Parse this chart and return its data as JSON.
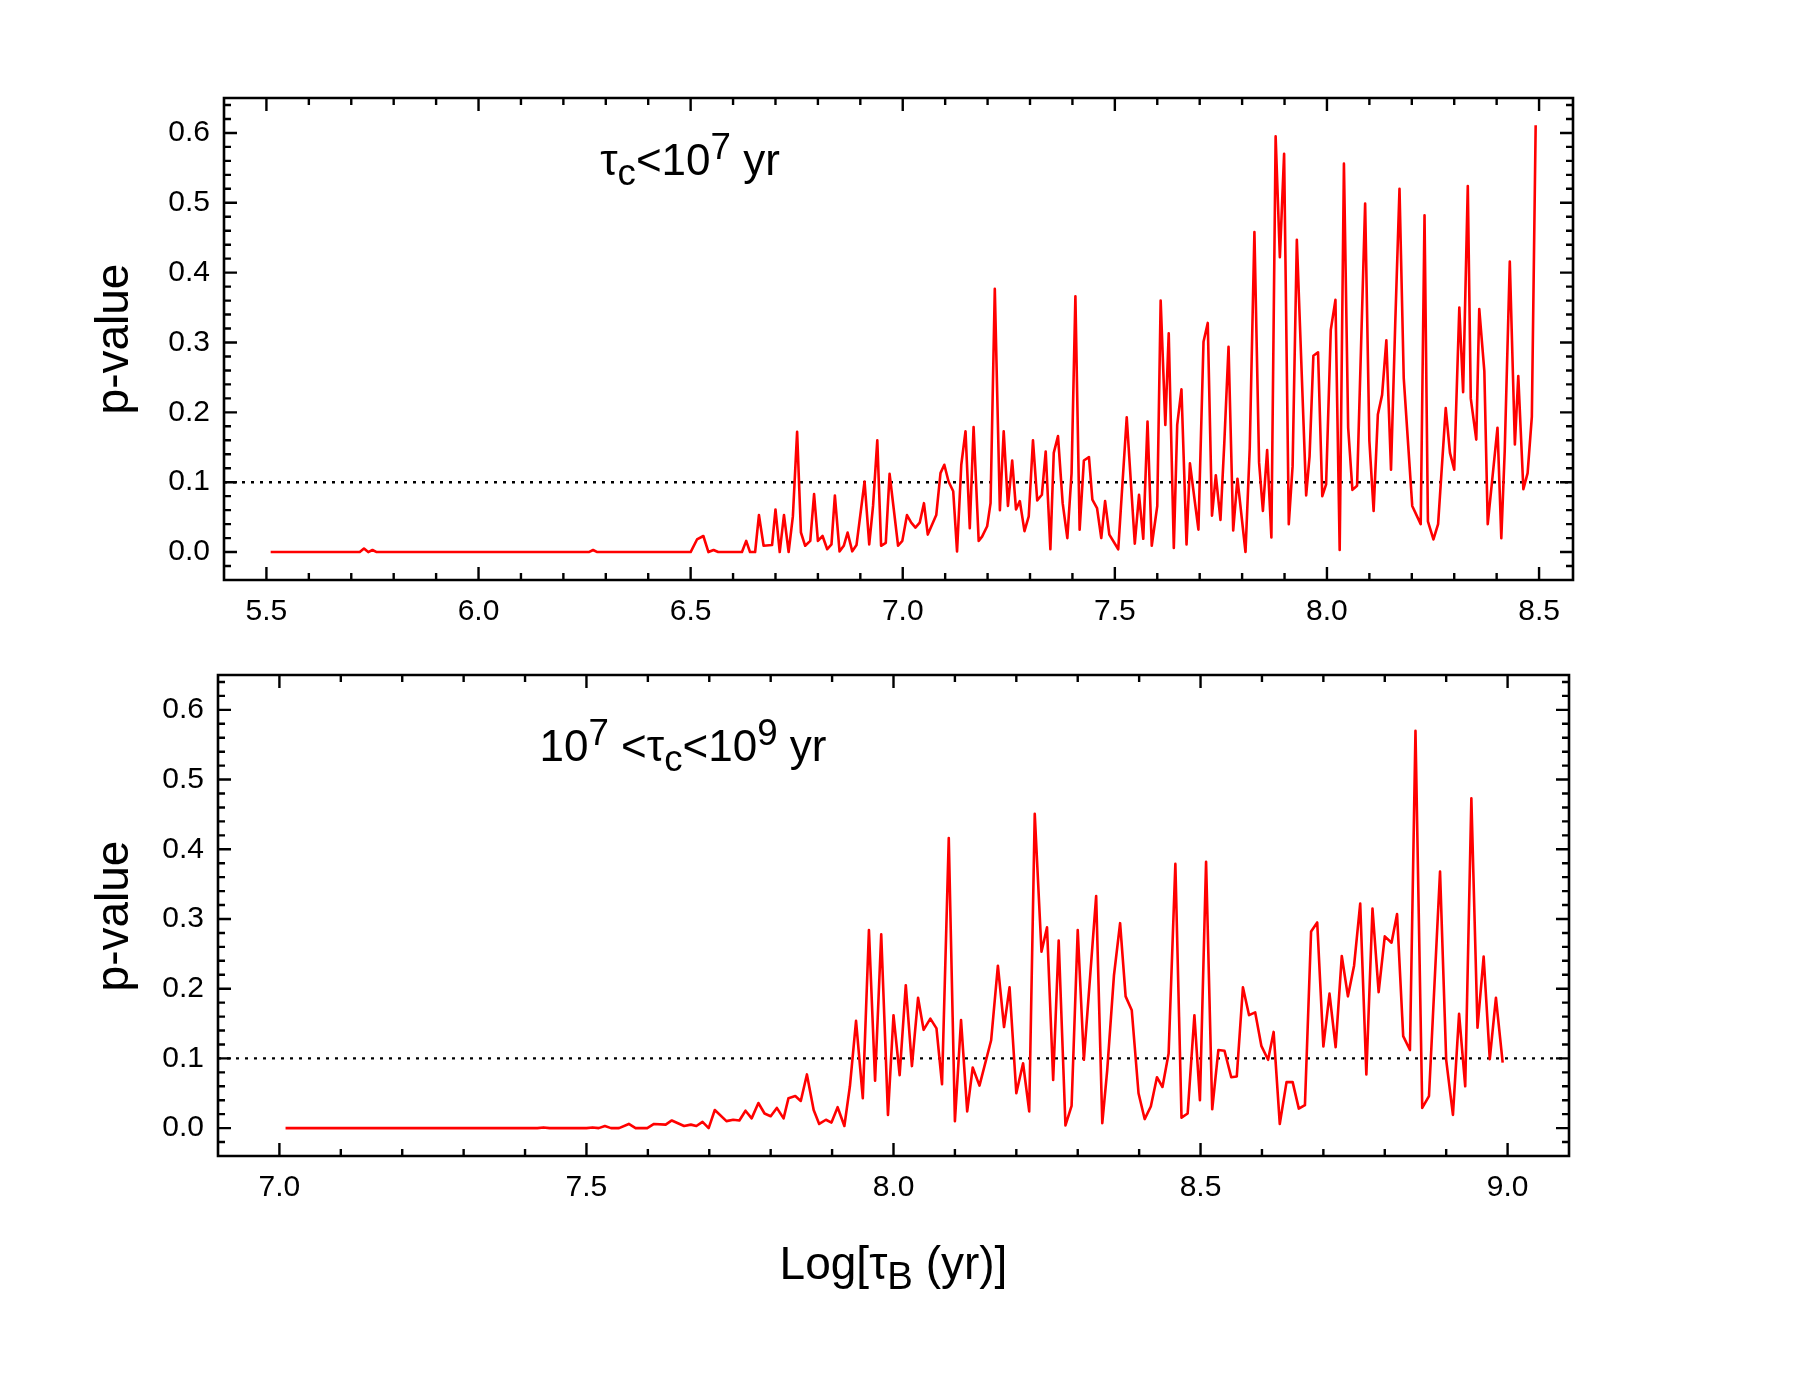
{
  "chart_data": [
    {
      "type": "line",
      "ylabel": "p-value",
      "annotations": [
        "τ$_{c}$<10$^{7}$ yr"
      ],
      "xlim": [
        5.4,
        8.58
      ],
      "ylim": [
        -0.04,
        0.65
      ],
      "xticks": [
        {
          "value": 5.5,
          "label": "5.5"
        },
        {
          "value": 5.6,
          "label": null
        },
        {
          "value": 5.7,
          "label": null
        },
        {
          "value": 5.8,
          "label": null
        },
        {
          "value": 5.9,
          "label": null
        },
        {
          "value": 6.0,
          "label": "6.0"
        },
        {
          "value": 6.1,
          "label": null
        },
        {
          "value": 6.2,
          "label": null
        },
        {
          "value": 6.3,
          "label": null
        },
        {
          "value": 6.4,
          "label": null
        },
        {
          "value": 6.5,
          "label": "6.5"
        },
        {
          "value": 6.6,
          "label": null
        },
        {
          "value": 6.7,
          "label": null
        },
        {
          "value": 6.8,
          "label": null
        },
        {
          "value": 6.9,
          "label": null
        },
        {
          "value": 7.0,
          "label": "7.0"
        },
        {
          "value": 7.1,
          "label": null
        },
        {
          "value": 7.2,
          "label": null
        },
        {
          "value": 7.3,
          "label": null
        },
        {
          "value": 7.4,
          "label": null
        },
        {
          "value": 7.5,
          "label": "7.5"
        },
        {
          "value": 7.6,
          "label": null
        },
        {
          "value": 7.7,
          "label": null
        },
        {
          "value": 7.8,
          "label": null
        },
        {
          "value": 7.9,
          "label": null
        },
        {
          "value": 8.0,
          "label": "8.0"
        },
        {
          "value": 8.1,
          "label": null
        },
        {
          "value": 8.2,
          "label": null
        },
        {
          "value": 8.3,
          "label": null
        },
        {
          "value": 8.4,
          "label": null
        },
        {
          "value": 8.5,
          "label": "8.5"
        }
      ],
      "yticks": [
        {
          "value": -0.02,
          "label": null
        },
        {
          "value": 0,
          "label": "0.0"
        },
        {
          "value": 0.02,
          "label": null
        },
        {
          "value": 0.04,
          "label": null
        },
        {
          "value": 0.06,
          "label": null
        },
        {
          "value": 0.08,
          "label": null
        },
        {
          "value": 0.1,
          "label": "0.1"
        },
        {
          "value": 0.12,
          "label": null
        },
        {
          "value": 0.14,
          "label": null
        },
        {
          "value": 0.16,
          "label": null
        },
        {
          "value": 0.18,
          "label": null
        },
        {
          "value": 0.2,
          "label": "0.2"
        },
        {
          "value": 0.22,
          "label": null
        },
        {
          "value": 0.24,
          "label": null
        },
        {
          "value": 0.26,
          "label": null
        },
        {
          "value": 0.28,
          "label": null
        },
        {
          "value": 0.3,
          "label": "0.3"
        },
        {
          "value": 0.32,
          "label": null
        },
        {
          "value": 0.34,
          "label": null
        },
        {
          "value": 0.36,
          "label": null
        },
        {
          "value": 0.38,
          "label": null
        },
        {
          "value": 0.4,
          "label": "0.4"
        },
        {
          "value": 0.42,
          "label": null
        },
        {
          "value": 0.44,
          "label": null
        },
        {
          "value": 0.46,
          "label": null
        },
        {
          "value": 0.48,
          "label": null
        },
        {
          "value": 0.5,
          "label": "0.5"
        },
        {
          "value": 0.52,
          "label": null
        },
        {
          "value": 0.54,
          "label": null
        },
        {
          "value": 0.56,
          "label": null
        },
        {
          "value": 0.58,
          "label": null
        },
        {
          "value": 0.6,
          "label": "0.6"
        },
        {
          "value": 0.62,
          "label": null
        },
        {
          "value": 0.64,
          "label": null
        }
      ],
      "ref_lines": [
        {
          "axis": "y",
          "value": 0.1,
          "line_style": "dotted",
          "color": "#000000"
        }
      ],
      "x": [
        5.51,
        5.72,
        5.73,
        5.74,
        5.75,
        5.76,
        6.26,
        6.27,
        6.28,
        6.5,
        6.515,
        6.53,
        6.542,
        6.554,
        6.565,
        6.621,
        6.631,
        6.64,
        6.652,
        6.661,
        6.672,
        6.692,
        6.7,
        6.71,
        6.72,
        6.731,
        6.741,
        6.751,
        6.76,
        6.77,
        6.782,
        6.791,
        6.8,
        6.811,
        6.822,
        6.832,
        6.84,
        6.851,
        6.861,
        6.87,
        6.881,
        6.891,
        6.91,
        6.921,
        6.93,
        6.94,
        6.949,
        6.96,
        6.969,
        6.989,
        6.999,
        7.01,
        7.02,
        7.03,
        7.04,
        7.05,
        7.059,
        7.079,
        7.089,
        7.098,
        7.108,
        7.119,
        7.128,
        7.138,
        7.148,
        7.158,
        7.167,
        7.179,
        7.187,
        7.199,
        7.207,
        7.217,
        7.229,
        7.238,
        7.248,
        7.258,
        7.267,
        7.276,
        7.287,
        7.297,
        7.307,
        7.317,
        7.328,
        7.337,
        7.348,
        7.356,
        7.366,
        7.377,
        7.388,
        7.398,
        7.407,
        7.417,
        7.427,
        7.439,
        7.447,
        7.458,
        7.468,
        7.477,
        7.487,
        7.508,
        7.528,
        7.547,
        7.557,
        7.567,
        7.577,
        7.587,
        7.6,
        7.608,
        7.619,
        7.627,
        7.639,
        7.647,
        7.657,
        7.669,
        7.677,
        7.697,
        7.709,
        7.719,
        7.729,
        7.738,
        7.749,
        7.758,
        7.768,
        7.779,
        7.789,
        7.808,
        7.818,
        7.829,
        7.84,
        7.849,
        7.859,
        7.869,
        7.879,
        7.889,
        7.899,
        7.91,
        7.919,
        7.929,
        7.951,
        7.959,
        7.968,
        7.979,
        7.989,
        7.998,
        8.009,
        8.02,
        8.03,
        8.04,
        8.05,
        8.06,
        8.071,
        8.09,
        8.1,
        8.11,
        8.12,
        8.13,
        8.14,
        8.151,
        8.161,
        8.171,
        8.181,
        8.201,
        8.221,
        8.23,
        8.238,
        8.251,
        8.262,
        8.28,
        8.29,
        8.3,
        8.312,
        8.321,
        8.332,
        8.339,
        8.352,
        8.359,
        8.371,
        8.379,
        8.402,
        8.411,
        8.419,
        8.431,
        8.443,
        8.451,
        8.463,
        8.473,
        8.483,
        8.492
      ],
      "series": [
        {
          "color": "#ff0000",
          "values": [
            0,
            0,
            0.005,
            0,
            0.003,
            0,
            0,
            0.003,
            0,
            0,
            0.018,
            0.023,
            0,
            0.003,
            0,
            0,
            0.016,
            0,
            0,
            0.053,
            0.009,
            0.01,
            0.061,
            0,
            0.053,
            0,
            0.051,
            0.172,
            0.028,
            0.009,
            0.016,
            0.083,
            0.016,
            0.023,
            0.004,
            0.011,
            0.081,
            0.001,
            0.009,
            0.028,
            0.001,
            0.01,
            0.101,
            0.011,
            0.066,
            0.16,
            0.009,
            0.013,
            0.112,
            0.009,
            0.016,
            0.053,
            0.042,
            0.035,
            0.042,
            0.07,
            0.025,
            0.053,
            0.113,
            0.125,
            0.101,
            0.087,
            0.001,
            0.125,
            0.173,
            0.034,
            0.179,
            0.016,
            0.022,
            0.037,
            0.07,
            0.377,
            0.06,
            0.173,
            0.066,
            0.131,
            0.061,
            0.073,
            0.03,
            0.051,
            0.16,
            0.074,
            0.082,
            0.144,
            0.004,
            0.142,
            0.166,
            0.07,
            0.02,
            0.113,
            0.366,
            0.032,
            0.131,
            0.136,
            0.075,
            0.063,
            0.02,
            0.073,
            0.025,
            0.004,
            0.193,
            0.012,
            0.082,
            0.019,
            0.187,
            0.009,
            0.066,
            0.36,
            0.182,
            0.313,
            0.006,
            0.182,
            0.233,
            0.011,
            0.127,
            0.032,
            0.301,
            0.328,
            0.052,
            0.11,
            0.046,
            0.156,
            0.294,
            0.031,
            0.105,
            0,
            0.149,
            0.458,
            0.128,
            0.059,
            0.146,
            0.021,
            0.595,
            0.422,
            0.57,
            0.04,
            0.123,
            0.447,
            0.081,
            0.137,
            0.281,
            0.286,
            0.08,
            0.097,
            0.318,
            0.361,
            0.003,
            0.556,
            0.178,
            0.089,
            0.095,
            0.499,
            0.159,
            0.059,
            0.197,
            0.225,
            0.303,
            0.118,
            0.328,
            0.52,
            0.249,
            0.066,
            0.04,
            0.482,
            0.044,
            0.018,
            0.04,
            0.206,
            0.142,
            0.118,
            0.35,
            0.229,
            0.524,
            0.22,
            0.161,
            0.348,
            0.259,
            0.04,
            0.178,
            0.02,
            0.144,
            0.416,
            0.154,
            0.252,
            0.09,
            0.113,
            0.194,
            0.611
          ]
        }
      ]
    },
    {
      "type": "line",
      "ylabel": "p-value",
      "xlabel": "Log[τ$_{B}$ (yr)]",
      "annotations": [
        "10$^{7}$ <τ$_{c}$<10$^{9}$ yr"
      ],
      "xlim": [
        6.9,
        9.1
      ],
      "ylim": [
        -0.04,
        0.65
      ],
      "xticks": [
        {
          "value": 7.0,
          "label": "7.0"
        },
        {
          "value": 7.1,
          "label": null
        },
        {
          "value": 7.2,
          "label": null
        },
        {
          "value": 7.3,
          "label": null
        },
        {
          "value": 7.4,
          "label": null
        },
        {
          "value": 7.5,
          "label": "7.5"
        },
        {
          "value": 7.6,
          "label": null
        },
        {
          "value": 7.7,
          "label": null
        },
        {
          "value": 7.8,
          "label": null
        },
        {
          "value": 7.9,
          "label": null
        },
        {
          "value": 8.0,
          "label": "8.0"
        },
        {
          "value": 8.1,
          "label": null
        },
        {
          "value": 8.2,
          "label": null
        },
        {
          "value": 8.3,
          "label": null
        },
        {
          "value": 8.4,
          "label": null
        },
        {
          "value": 8.5,
          "label": "8.5"
        },
        {
          "value": 8.6,
          "label": null
        },
        {
          "value": 8.7,
          "label": null
        },
        {
          "value": 8.8,
          "label": null
        },
        {
          "value": 8.9,
          "label": null
        },
        {
          "value": 9.0,
          "label": "9.0"
        }
      ],
      "yticks": [
        {
          "value": -0.02,
          "label": null
        },
        {
          "value": 0,
          "label": "0.0"
        },
        {
          "value": 0.02,
          "label": null
        },
        {
          "value": 0.04,
          "label": null
        },
        {
          "value": 0.06,
          "label": null
        },
        {
          "value": 0.08,
          "label": null
        },
        {
          "value": 0.1,
          "label": "0.1"
        },
        {
          "value": 0.12,
          "label": null
        },
        {
          "value": 0.14,
          "label": null
        },
        {
          "value": 0.16,
          "label": null
        },
        {
          "value": 0.18,
          "label": null
        },
        {
          "value": 0.2,
          "label": "0.2"
        },
        {
          "value": 0.22,
          "label": null
        },
        {
          "value": 0.24,
          "label": null
        },
        {
          "value": 0.26,
          "label": null
        },
        {
          "value": 0.28,
          "label": null
        },
        {
          "value": 0.3,
          "label": "0.3"
        },
        {
          "value": 0.32,
          "label": null
        },
        {
          "value": 0.34,
          "label": null
        },
        {
          "value": 0.36,
          "label": null
        },
        {
          "value": 0.38,
          "label": null
        },
        {
          "value": 0.4,
          "label": "0.4"
        },
        {
          "value": 0.42,
          "label": null
        },
        {
          "value": 0.44,
          "label": null
        },
        {
          "value": 0.46,
          "label": null
        },
        {
          "value": 0.48,
          "label": null
        },
        {
          "value": 0.5,
          "label": "0.5"
        },
        {
          "value": 0.52,
          "label": null
        },
        {
          "value": 0.54,
          "label": null
        },
        {
          "value": 0.56,
          "label": null
        },
        {
          "value": 0.58,
          "label": null
        },
        {
          "value": 0.6,
          "label": "0.6"
        },
        {
          "value": 0.62,
          "label": null
        },
        {
          "value": 0.64,
          "label": null
        }
      ],
      "ref_lines": [
        {
          "axis": "y",
          "value": 0.1,
          "line_style": "dotted",
          "color": "#000000"
        }
      ],
      "x": [
        7.01,
        7.42,
        7.43,
        7.44,
        7.5,
        7.51,
        7.52,
        7.53,
        7.54,
        7.553,
        7.569,
        7.58,
        7.599,
        7.61,
        7.629,
        7.639,
        7.659,
        7.67,
        7.679,
        7.689,
        7.699,
        7.709,
        7.728,
        7.739,
        7.749,
        7.759,
        7.769,
        7.78,
        7.79,
        7.8,
        7.81,
        7.821,
        7.829,
        7.84,
        7.849,
        7.859,
        7.87,
        7.879,
        7.89,
        7.899,
        7.909,
        7.92,
        7.929,
        7.939,
        7.95,
        7.96,
        7.97,
        7.98,
        7.991,
        8.0,
        8.01,
        8.02,
        8.03,
        8.04,
        8.049,
        8.06,
        8.07,
        8.079,
        8.09,
        8.1,
        8.11,
        8.12,
        8.129,
        8.14,
        8.159,
        8.17,
        8.18,
        8.189,
        8.2,
        8.211,
        8.221,
        8.23,
        8.241,
        8.25,
        8.26,
        8.269,
        8.28,
        8.29,
        8.3,
        8.31,
        8.33,
        8.34,
        8.348,
        8.359,
        8.369,
        8.378,
        8.388,
        8.399,
        8.409,
        8.419,
        8.429,
        8.438,
        8.448,
        8.459,
        8.469,
        8.479,
        8.49,
        8.499,
        8.509,
        8.519,
        8.529,
        8.539,
        8.55,
        8.559,
        8.569,
        8.579,
        8.589,
        8.599,
        8.61,
        8.619,
        8.629,
        8.64,
        8.65,
        8.66,
        8.67,
        8.68,
        8.69,
        8.7,
        8.71,
        8.72,
        8.73,
        8.74,
        8.75,
        8.76,
        8.77,
        8.78,
        8.79,
        8.8,
        8.811,
        8.82,
        8.83,
        8.841,
        8.85,
        8.861,
        8.872,
        8.89,
        8.9,
        8.911,
        8.921,
        8.931,
        8.941,
        8.951,
        8.961,
        8.971,
        8.981,
        8.992
      ],
      "series": [
        {
          "color": "#ff0000",
          "values": [
            0,
            0,
            0.001,
            0,
            0,
            0.001,
            0,
            0.003,
            0,
            0,
            0.006,
            0,
            0,
            0.006,
            0.005,
            0.011,
            0.003,
            0.005,
            0.003,
            0.009,
            0,
            0.026,
            0.01,
            0.012,
            0.011,
            0.025,
            0.014,
            0.036,
            0.021,
            0.017,
            0.029,
            0.014,
            0.043,
            0.046,
            0.039,
            0.077,
            0.026,
            0.006,
            0.012,
            0.008,
            0.03,
            0.003,
            0.06,
            0.154,
            0.043,
            0.284,
            0.068,
            0.278,
            0.019,
            0.162,
            0.076,
            0.205,
            0.089,
            0.187,
            0.141,
            0.157,
            0.143,
            0.063,
            0.416,
            0.01,
            0.155,
            0.024,
            0.087,
            0.061,
            0.126,
            0.233,
            0.145,
            0.202,
            0.05,
            0.093,
            0.024,
            0.451,
            0.253,
            0.288,
            0.069,
            0.269,
            0.004,
            0.032,
            0.284,
            0.098,
            0.333,
            0.007,
            0.083,
            0.219,
            0.294,
            0.189,
            0.169,
            0.05,
            0.013,
            0.031,
            0.073,
            0.059,
            0.107,
            0.379,
            0.015,
            0.021,
            0.162,
            0.04,
            0.382,
            0.027,
            0.112,
            0.111,
            0.073,
            0.074,
            0.202,
            0.162,
            0.166,
            0.118,
            0.098,
            0.138,
            0.006,
            0.066,
            0.066,
            0.028,
            0.033,
            0.282,
            0.295,
            0.117,
            0.193,
            0.116,
            0.247,
            0.189,
            0.233,
            0.322,
            0.077,
            0.315,
            0.195,
            0.275,
            0.266,
            0.307,
            0.132,
            0.112,
            0.57,
            0.029,
            0.046,
            0.368,
            0.098,
            0.019,
            0.164,
            0.06,
            0.473,
            0.144,
            0.246,
            0.099,
            0.187,
            0.094
          ]
        }
      ]
    }
  ]
}
